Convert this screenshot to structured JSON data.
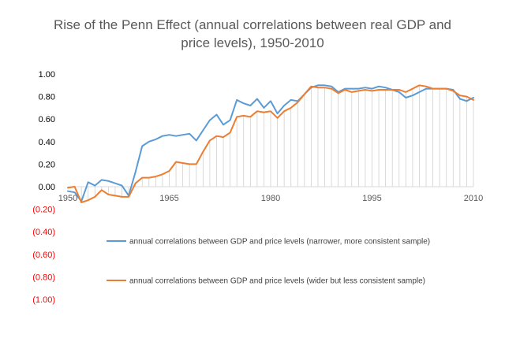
{
  "chart_data": {
    "type": "line",
    "title_lines": [
      "Rise of the Penn Effect (annual correlations between real GDP and",
      "price levels), 1950-2010"
    ],
    "xlabel": "",
    "ylabel": "",
    "xlim": [
      1950,
      2010
    ],
    "ylim": [
      -1.0,
      1.0
    ],
    "x_tick_labels": [
      "1950",
      "1965",
      "1980",
      "1995",
      "2010"
    ],
    "x_tick_values": [
      1950,
      1965,
      1980,
      1995,
      2010
    ],
    "y_tick_labels": [
      "1.00",
      "0.80",
      "0.60",
      "0.40",
      "0.20",
      "0.00",
      "(0.20)",
      "(0.40)",
      "(0.60)",
      "(0.80)",
      "(1.00)"
    ],
    "y_tick_values": [
      1.0,
      0.8,
      0.6,
      0.4,
      0.2,
      0.0,
      -0.2,
      -0.4,
      -0.6,
      -0.8,
      -1.0
    ],
    "negative_label_color": "#ff0000",
    "positive_label_color": "#000000",
    "grid": "vertical drop lines from orange series",
    "legend_placement": "inside-bottom",
    "x": [
      1950,
      1951,
      1952,
      1953,
      1954,
      1955,
      1956,
      1957,
      1958,
      1959,
      1960,
      1961,
      1962,
      1963,
      1964,
      1965,
      1966,
      1967,
      1968,
      1969,
      1970,
      1971,
      1972,
      1973,
      1974,
      1975,
      1976,
      1977,
      1978,
      1979,
      1980,
      1981,
      1982,
      1983,
      1984,
      1985,
      1986,
      1987,
      1988,
      1989,
      1990,
      1991,
      1992,
      1993,
      1994,
      1995,
      1996,
      1997,
      1998,
      1999,
      2000,
      2001,
      2002,
      2003,
      2004,
      2005,
      2006,
      2007,
      2008,
      2009,
      2010
    ],
    "series": [
      {
        "name": "annual correlations between GDP and price levels (narrower, more consistent sample)",
        "color": "#5b9bd5",
        "values": [
          -0.04,
          -0.05,
          -0.13,
          0.04,
          0.01,
          0.06,
          0.05,
          0.03,
          0.01,
          -0.08,
          0.13,
          0.36,
          0.4,
          0.42,
          0.45,
          0.46,
          0.45,
          0.46,
          0.47,
          0.41,
          0.5,
          0.59,
          0.64,
          0.55,
          0.59,
          0.77,
          0.74,
          0.72,
          0.78,
          0.7,
          0.76,
          0.65,
          0.72,
          0.77,
          0.76,
          0.82,
          0.88,
          0.9,
          0.9,
          0.89,
          0.84,
          0.87,
          0.87,
          0.87,
          0.88,
          0.87,
          0.89,
          0.88,
          0.86,
          0.84,
          0.79,
          0.81,
          0.84,
          0.87,
          0.87,
          0.87,
          0.87,
          0.86,
          0.78,
          0.76,
          0.79
        ]
      },
      {
        "name": "annual correlations between GDP and price levels (wider but less consistent sample)",
        "color": "#ed7d31",
        "values": [
          -0.01,
          0.0,
          -0.14,
          -0.12,
          -0.09,
          -0.03,
          -0.07,
          -0.08,
          -0.09,
          -0.09,
          0.03,
          0.08,
          0.08,
          0.09,
          0.11,
          0.14,
          0.22,
          0.21,
          0.2,
          0.2,
          0.31,
          0.41,
          0.45,
          0.44,
          0.48,
          0.62,
          0.63,
          0.62,
          0.67,
          0.66,
          0.67,
          0.61,
          0.67,
          0.7,
          0.75,
          0.82,
          0.89,
          0.88,
          0.88,
          0.87,
          0.83,
          0.86,
          0.84,
          0.85,
          0.86,
          0.85,
          0.86,
          0.86,
          0.86,
          0.86,
          0.84,
          0.87,
          0.9,
          0.89,
          0.87,
          0.87,
          0.87,
          0.85,
          0.81,
          0.8,
          0.77
        ]
      }
    ]
  }
}
